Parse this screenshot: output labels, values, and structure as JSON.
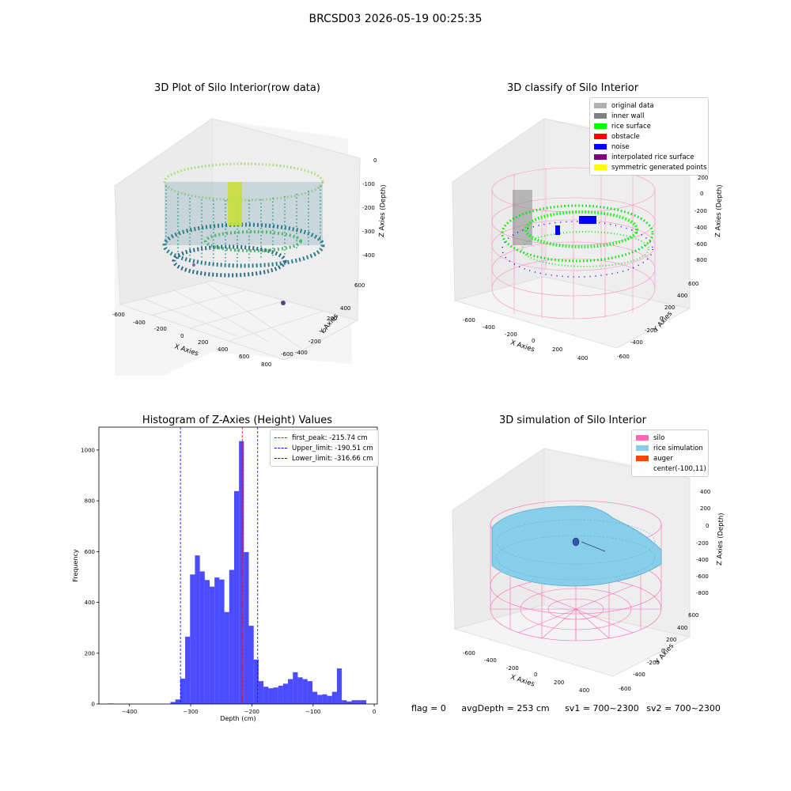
{
  "suptitle": "BRCSD03 2026-05-19 00:25:35",
  "panel_raw": {
    "title": "3D Plot of Silo Interior(row data)",
    "xlabel": "X Axies",
    "ylabel": "Y Axies",
    "zlabel": "Z Axies (Depth)",
    "xticks": [
      "-600",
      "-400",
      "-200",
      "0",
      "200",
      "400",
      "600",
      "800"
    ],
    "yticks": [
      "600",
      "400",
      "200",
      "0",
      "-200",
      "-400",
      "-600"
    ],
    "zticks": [
      "0",
      "-100",
      "-200",
      "-300",
      "-400"
    ]
  },
  "panel_classify": {
    "title": "3D classify of Silo Interior",
    "xlabel": "X Axies",
    "ylabel": "Y Axies",
    "zlabel": "Z Axies (Depth)",
    "xticks": [
      "-600",
      "-400",
      "-200",
      "0",
      "200",
      "400"
    ],
    "yticks": [
      "600",
      "400",
      "200",
      "0",
      "-200",
      "-400",
      "-600"
    ],
    "zticks": [
      "200",
      "0",
      "-200",
      "-400",
      "-600",
      "-800"
    ],
    "legend": [
      {
        "label": "original data",
        "color": "#b0b0b0"
      },
      {
        "label": "inner wall",
        "color": "#808080"
      },
      {
        "label": "rice surface",
        "color": "#00ff00"
      },
      {
        "label": "obstacle",
        "color": "#ff0000"
      },
      {
        "label": "noise",
        "color": "#0000ff"
      },
      {
        "label": "interpolated rice surface",
        "color": "#800080"
      },
      {
        "label": "symmetric generated points",
        "color": "#ffff00"
      }
    ]
  },
  "panel_sim": {
    "title": "3D simulation of Silo Interior",
    "xlabel": "X Axies",
    "ylabel": "Y Axies",
    "zlabel": "Z Axies (Depth)",
    "xticks": [
      "-600",
      "-400",
      "-200",
      "0",
      "200",
      "400"
    ],
    "yticks": [
      "600",
      "400",
      "200",
      "0",
      "-200",
      "-400",
      "-600"
    ],
    "zticks": [
      "400",
      "200",
      "0",
      "-200",
      "-400",
      "-600",
      "-800"
    ],
    "legend": [
      {
        "label": "silo",
        "color": "#ff69b4"
      },
      {
        "label": "rice simulation",
        "color": "#87ceeb"
      },
      {
        "label": "auger",
        "color": "#ff4500"
      },
      {
        "label": "center(-100,11)",
        "color": ""
      }
    ]
  },
  "status": {
    "flag": "flag = 0",
    "avg_depth": "avgDepth = 253 cm",
    "sv1": "sv1 = 700~2300",
    "sv2": "sv2 = 700~2300"
  },
  "chart_data": {
    "type": "bar",
    "title": "Histogram of Z-Axies (Height) Values",
    "xlabel": "Depth (cm)",
    "ylabel": "Frequency",
    "xlim": [
      -450,
      5
    ],
    "ylim": [
      0,
      1090
    ],
    "xticks": [
      -400,
      -300,
      -200,
      -100,
      0
    ],
    "yticks": [
      0,
      200,
      400,
      600,
      800,
      1000
    ],
    "bar_color": "#0000ff",
    "bins": [
      {
        "x0": -435,
        "x1": -427,
        "y": 2
      },
      {
        "x0": -333,
        "x1": -325,
        "y": 8
      },
      {
        "x0": -325,
        "x1": -317,
        "y": 18
      },
      {
        "x0": -317,
        "x1": -309,
        "y": 100
      },
      {
        "x0": -309,
        "x1": -301,
        "y": 265
      },
      {
        "x0": -301,
        "x1": -293,
        "y": 510
      },
      {
        "x0": -293,
        "x1": -285,
        "y": 585
      },
      {
        "x0": -285,
        "x1": -277,
        "y": 522
      },
      {
        "x0": -277,
        "x1": -269,
        "y": 488
      },
      {
        "x0": -269,
        "x1": -261,
        "y": 462
      },
      {
        "x0": -261,
        "x1": -253,
        "y": 498
      },
      {
        "x0": -253,
        "x1": -245,
        "y": 490
      },
      {
        "x0": -245,
        "x1": -237,
        "y": 362
      },
      {
        "x0": -237,
        "x1": -229,
        "y": 528
      },
      {
        "x0": -229,
        "x1": -221,
        "y": 838
      },
      {
        "x0": -221,
        "x1": -213,
        "y": 1035
      },
      {
        "x0": -213,
        "x1": -205,
        "y": 598
      },
      {
        "x0": -205,
        "x1": -197,
        "y": 308
      },
      {
        "x0": -197,
        "x1": -189,
        "y": 175
      },
      {
        "x0": -189,
        "x1": -181,
        "y": 90
      },
      {
        "x0": -181,
        "x1": -173,
        "y": 68
      },
      {
        "x0": -173,
        "x1": -165,
        "y": 62
      },
      {
        "x0": -165,
        "x1": -157,
        "y": 65
      },
      {
        "x0": -157,
        "x1": -149,
        "y": 72
      },
      {
        "x0": -149,
        "x1": -141,
        "y": 80
      },
      {
        "x0": -141,
        "x1": -133,
        "y": 98
      },
      {
        "x0": -133,
        "x1": -125,
        "y": 125
      },
      {
        "x0": -125,
        "x1": -117,
        "y": 105
      },
      {
        "x0": -117,
        "x1": -109,
        "y": 98
      },
      {
        "x0": -109,
        "x1": -101,
        "y": 90
      },
      {
        "x0": -101,
        "x1": -93,
        "y": 48
      },
      {
        "x0": -93,
        "x1": -85,
        "y": 36
      },
      {
        "x0": -85,
        "x1": -77,
        "y": 38
      },
      {
        "x0": -77,
        "x1": -69,
        "y": 32
      },
      {
        "x0": -69,
        "x1": -61,
        "y": 48
      },
      {
        "x0": -61,
        "x1": -53,
        "y": 140
      },
      {
        "x0": -53,
        "x1": -45,
        "y": 15
      },
      {
        "x0": -45,
        "x1": -37,
        "y": 10
      },
      {
        "x0": -37,
        "x1": -29,
        "y": 15
      },
      {
        "x0": -29,
        "x1": -21,
        "y": 15
      },
      {
        "x0": -21,
        "x1": -13,
        "y": 15
      }
    ],
    "vlines": [
      {
        "x": -215.74,
        "color": "#ff0000",
        "label": "first_peak: -215.74 cm"
      },
      {
        "x": -190.51,
        "color": "#0000ff",
        "label": "Upper_limit: -190.51 cm"
      },
      {
        "x": -316.66,
        "color": "#0000ff",
        "label": "Lower_limit: -316.66 cm"
      }
    ]
  }
}
